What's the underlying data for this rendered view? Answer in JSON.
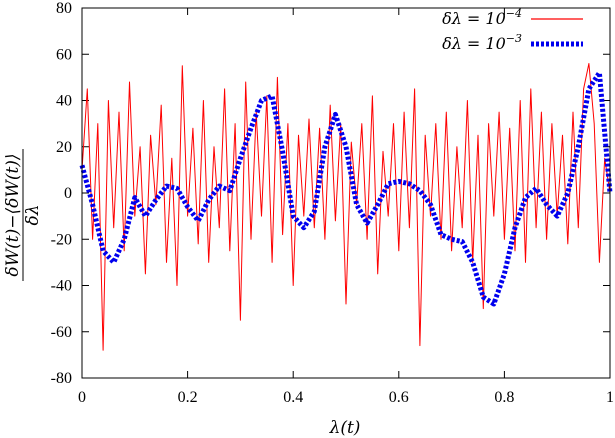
{
  "chart_data": {
    "type": "line",
    "xlabel": "λ(t)",
    "ylabel": {
      "numerator": "δW(t)−⟨δW(t)⟩",
      "denominator": "δλ"
    },
    "xlim": [
      0,
      1
    ],
    "ylim": [
      -80,
      80
    ],
    "xticks": [
      "0",
      "0.2",
      "0.4",
      "0.6",
      "0.8",
      "1"
    ],
    "yticks": [
      "80",
      "60",
      "40",
      "20",
      "0",
      "-20",
      "-40",
      "-60",
      "-80"
    ],
    "grid": false,
    "legend_position": "top-right",
    "series": [
      {
        "name": "δλ = 10",
        "name_exponent": "−4",
        "color": "#ff0000",
        "style": "solid",
        "x": [
          0,
          0.01,
          0.02,
          0.03,
          0.04,
          0.05,
          0.06,
          0.07,
          0.08,
          0.09,
          0.1,
          0.11,
          0.12,
          0.13,
          0.14,
          0.15,
          0.16,
          0.17,
          0.18,
          0.19,
          0.2,
          0.21,
          0.22,
          0.23,
          0.24,
          0.25,
          0.26,
          0.27,
          0.28,
          0.29,
          0.3,
          0.31,
          0.32,
          0.33,
          0.34,
          0.35,
          0.36,
          0.37,
          0.38,
          0.39,
          0.4,
          0.41,
          0.42,
          0.43,
          0.44,
          0.45,
          0.46,
          0.47,
          0.48,
          0.49,
          0.5,
          0.51,
          0.52,
          0.53,
          0.54,
          0.55,
          0.56,
          0.57,
          0.58,
          0.59,
          0.6,
          0.61,
          0.62,
          0.63,
          0.64,
          0.65,
          0.66,
          0.67,
          0.68,
          0.69,
          0.7,
          0.71,
          0.72,
          0.73,
          0.74,
          0.75,
          0.76,
          0.77,
          0.78,
          0.79,
          0.8,
          0.81,
          0.82,
          0.83,
          0.84,
          0.85,
          0.86,
          0.87,
          0.88,
          0.89,
          0.9,
          0.91,
          0.92,
          0.93,
          0.94,
          0.95,
          0.96,
          0.97,
          0.98,
          0.99,
          1.0
        ],
        "y": [
          10,
          45,
          -20,
          30,
          -68,
          40,
          -15,
          35,
          -25,
          48,
          -10,
          20,
          -35,
          25,
          -5,
          38,
          -30,
          15,
          -40,
          55,
          -10,
          28,
          -22,
          40,
          -30,
          20,
          -15,
          45,
          -25,
          30,
          -55,
          48,
          -20,
          35,
          -10,
          42,
          -30,
          50,
          -18,
          30,
          -40,
          25,
          -10,
          32,
          -15,
          28,
          -20,
          38,
          -12,
          30,
          -48,
          22,
          -5,
          30,
          -20,
          42,
          -35,
          18,
          -10,
          30,
          -25,
          35,
          -15,
          45,
          -66,
          25,
          -10,
          30,
          -20,
          35,
          -25,
          20,
          -15,
          40,
          -30,
          25,
          -50,
          30,
          -10,
          35,
          -20,
          28,
          -25,
          40,
          -30,
          45,
          -15,
          35,
          -20,
          30,
          -10,
          25,
          -22,
          35,
          -15,
          45,
          56,
          30,
          -30,
          15,
          0
        ]
      },
      {
        "name": "δλ = 10",
        "name_exponent": "−3",
        "color": "#0000ee",
        "style": "dotted",
        "x": [
          0,
          0.02,
          0.04,
          0.06,
          0.08,
          0.1,
          0.12,
          0.14,
          0.16,
          0.18,
          0.2,
          0.22,
          0.24,
          0.26,
          0.28,
          0.3,
          0.32,
          0.34,
          0.36,
          0.38,
          0.4,
          0.42,
          0.44,
          0.46,
          0.48,
          0.5,
          0.52,
          0.54,
          0.56,
          0.58,
          0.6,
          0.62,
          0.64,
          0.66,
          0.68,
          0.7,
          0.72,
          0.74,
          0.76,
          0.78,
          0.8,
          0.82,
          0.84,
          0.86,
          0.88,
          0.9,
          0.92,
          0.94,
          0.96,
          0.98,
          1.0
        ],
        "y": [
          12,
          -5,
          -25,
          -30,
          -20,
          -2,
          -10,
          -3,
          3,
          2,
          -6,
          -12,
          -3,
          3,
          1,
          15,
          28,
          40,
          42,
          18,
          -10,
          -15,
          -8,
          20,
          34,
          20,
          -5,
          -13,
          -5,
          4,
          5,
          4,
          1,
          -5,
          -18,
          -20,
          -21,
          -30,
          -45,
          -48,
          -35,
          -15,
          -2,
          2,
          -5,
          -10,
          0,
          20,
          45,
          52,
          0
        ]
      }
    ]
  }
}
